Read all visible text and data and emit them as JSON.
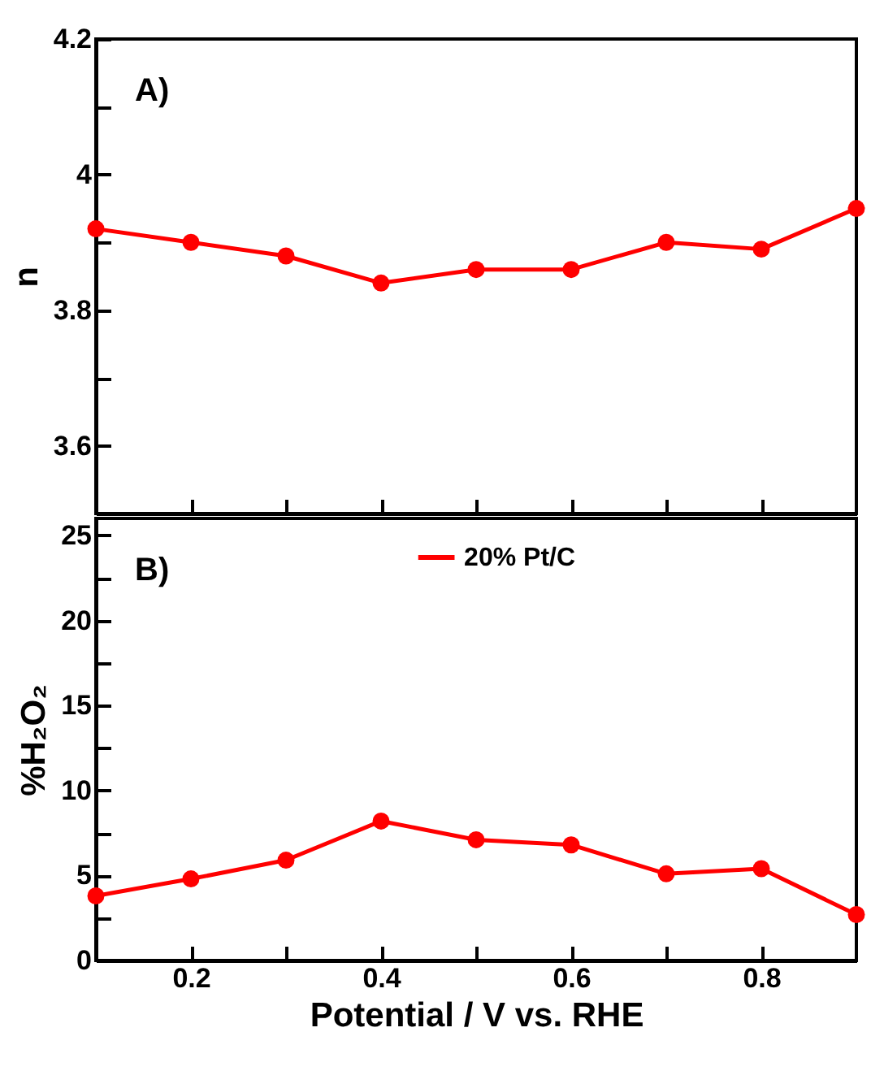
{
  "chart_data": [
    {
      "type": "line",
      "x": [
        0.1,
        0.2,
        0.3,
        0.4,
        0.5,
        0.6,
        0.7,
        0.8,
        0.9
      ],
      "ylabel": "n",
      "annotations": [
        "A)"
      ],
      "marker": "circle",
      "line_style": "solid",
      "tick_labels": "y",
      "series": [
        {
          "color": "#ff0000",
          "values": [
            3.92,
            3.9,
            3.88,
            3.84,
            3.86,
            3.86,
            3.9,
            3.89,
            3.95
          ]
        }
      ],
      "xlim": [
        0.1,
        0.9
      ],
      "xticks": [
        {
          "value": 0.2,
          "label": null
        },
        {
          "value": 0.3,
          "label": null
        },
        {
          "value": 0.4,
          "label": null
        },
        {
          "value": 0.5,
          "label": null
        },
        {
          "value": 0.6,
          "label": null
        },
        {
          "value": 0.7,
          "label": null
        },
        {
          "value": 0.8,
          "label": null
        }
      ],
      "ylim": [
        3.5,
        4.2
      ],
      "yticks": [
        3.6,
        {
          "value": 3.7,
          "label": null
        },
        3.8,
        {
          "value": 3.9,
          "label": null
        },
        4,
        {
          "value": 4.1,
          "label": null
        },
        4.2
      ]
    },
    {
      "type": "line",
      "x": [
        0.1,
        0.2,
        0.3,
        0.4,
        0.5,
        0.6,
        0.7,
        0.8,
        0.9
      ],
      "xlabel": "Potential / V vs. RHE",
      "ylabel": "%H₂O₂",
      "annotations": [
        "B)"
      ],
      "marker": "circle",
      "line_style": "solid",
      "legend": "top",
      "series": [
        {
          "name": "20% Pt/C",
          "color": "#ff0000",
          "values": [
            3.8,
            4.8,
            5.9,
            8.2,
            7.1,
            6.8,
            5.1,
            5.4,
            2.7
          ]
        }
      ],
      "xlim": [
        0.1,
        0.9
      ],
      "xticks": [
        0.2,
        {
          "value": 0.3,
          "label": null
        },
        0.4,
        {
          "value": 0.5,
          "label": null
        },
        0.6,
        {
          "value": 0.7,
          "label": null
        },
        0.8
      ],
      "ylim": [
        0,
        26
      ],
      "yticks": [
        0,
        {
          "value": 2.5,
          "label": null
        },
        5,
        {
          "value": 7.5,
          "label": null
        },
        10,
        {
          "value": 12.5,
          "label": null
        },
        15,
        {
          "value": 17.5,
          "label": null
        },
        20,
        {
          "value": 22.5,
          "label": null
        },
        25
      ]
    }
  ]
}
